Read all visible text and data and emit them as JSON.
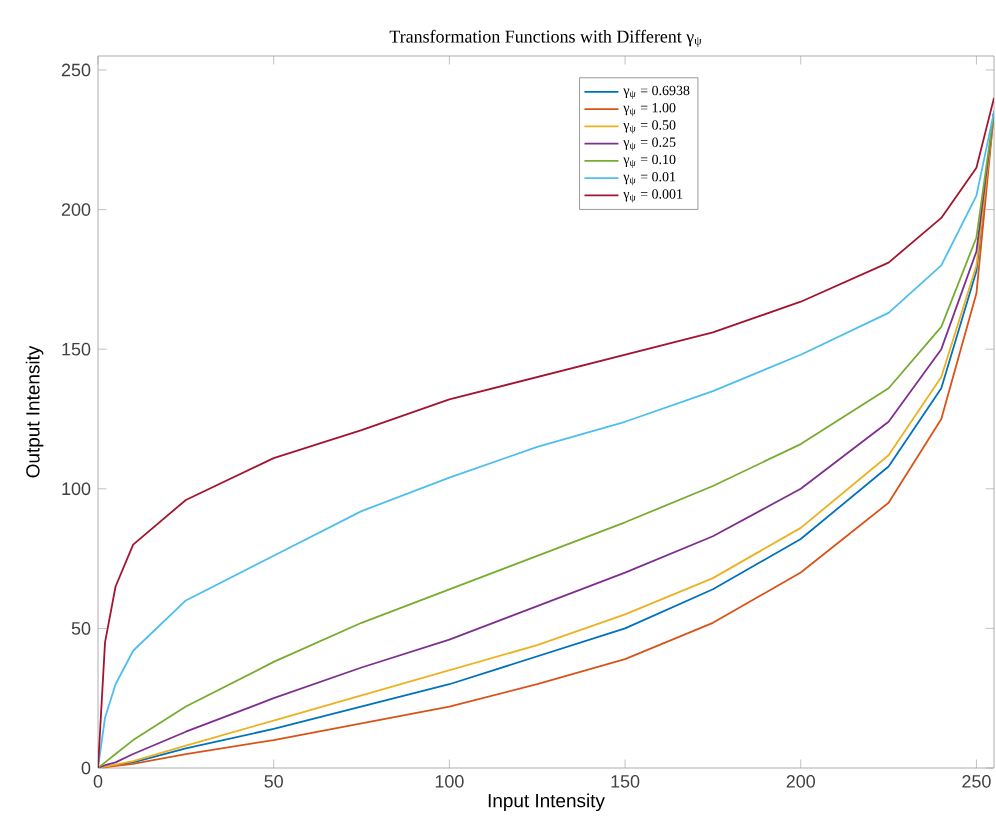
{
  "chart_data": {
    "type": "line",
    "title": "Transformation Functions with Different γ$_{ψ}$",
    "xlabel": "Input Intensity",
    "ylabel": "Output Intensity",
    "xlim": [
      0,
      255
    ],
    "ylim": [
      0,
      255
    ],
    "xticks": [
      0,
      50,
      100,
      150,
      200,
      250
    ],
    "yticks": [
      0,
      50,
      100,
      150,
      200,
      250
    ],
    "grid": false,
    "legend": "top right",
    "marker": "none",
    "line_style": "solid",
    "x": [
      0,
      2,
      5,
      10,
      25,
      50,
      75,
      100,
      125,
      150,
      175,
      200,
      225,
      240,
      250,
      255
    ],
    "series": [
      {
        "name": "γ$_{ψ}$ = 0.6938",
        "color": "#0072bd",
        "values": [
          0,
          0.5,
          1,
          2,
          7,
          14,
          22,
          30,
          40,
          50,
          64,
          82,
          108,
          136,
          178,
          235
        ]
      },
      {
        "name": "γ$_{ψ}$ = 1.00",
        "color": "#d95319",
        "values": [
          0,
          0.3,
          0.8,
          1.5,
          5,
          10,
          16,
          22,
          30,
          39,
          52,
          70,
          95,
          125,
          170,
          235
        ]
      },
      {
        "name": "γ$_{ψ}$ = 0.50",
        "color": "#edb120",
        "values": [
          0,
          0.5,
          1.2,
          2.5,
          8,
          17,
          26,
          35,
          44,
          55,
          68,
          86,
          112,
          140,
          180,
          235
        ]
      },
      {
        "name": "γ$_{ψ}$ = 0.25",
        "color": "#7e2f8e",
        "values": [
          0,
          1,
          2,
          5,
          13,
          25,
          36,
          46,
          58,
          70,
          83,
          100,
          124,
          150,
          185,
          235
        ]
      },
      {
        "name": "γ$_{ψ}$ = 0.10",
        "color": "#77ac30",
        "values": [
          0,
          2,
          5,
          10,
          22,
          38,
          52,
          64,
          76,
          88,
          101,
          116,
          136,
          158,
          190,
          235
        ]
      },
      {
        "name": "γ$_{ψ}$ = 0.01",
        "color": "#4dbeee",
        "values": [
          0,
          18,
          30,
          42,
          60,
          76,
          92,
          104,
          115,
          124,
          135,
          148,
          163,
          180,
          205,
          235
        ]
      },
      {
        "name": "γ$_{ψ}$ = 0.001",
        "color": "#a2142f",
        "values": [
          0,
          45,
          65,
          80,
          96,
          111,
          121,
          132,
          140,
          148,
          156,
          167,
          181,
          197,
          215,
          240
        ]
      }
    ]
  }
}
